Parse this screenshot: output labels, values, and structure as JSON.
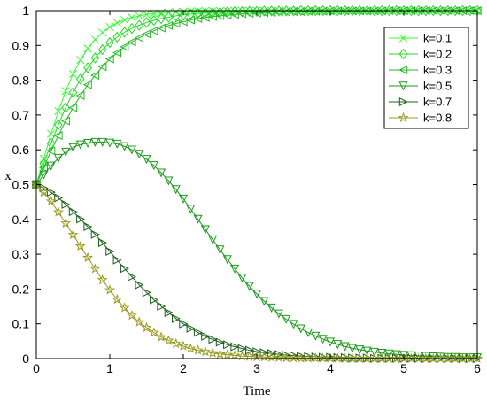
{
  "chart_data": {
    "type": "line",
    "xlabel": "Time",
    "ylabel": "x",
    "xlim": [
      0,
      6
    ],
    "ylim": [
      0,
      1
    ],
    "xticks": [
      0,
      1,
      2,
      3,
      4,
      5,
      6
    ],
    "yticks": [
      0,
      0.1,
      0.2,
      0.3,
      0.4,
      0.5,
      0.6,
      0.7,
      0.8,
      0.9,
      1
    ],
    "grid": false,
    "legend_position": "top-right",
    "sample_step": 0.1,
    "series": [
      {
        "name": "k=0.1",
        "color": "#33ff33",
        "marker": "x",
        "x": [
          0,
          0.1,
          0.2,
          0.3,
          0.4,
          0.5,
          0.6,
          0.7,
          0.8,
          0.9,
          1,
          1.1,
          1.2,
          1.3,
          1.4,
          1.5,
          1.6,
          1.7,
          1.8,
          1.9,
          2,
          2.1,
          2.2,
          2.3,
          2.4,
          2.5,
          2.6,
          2.7,
          2.8,
          2.9,
          3,
          3.1,
          3.2,
          3.3,
          3.4,
          3.5,
          3.6,
          3.7,
          3.8,
          3.9,
          4,
          4.1,
          4.2,
          4.3,
          4.4,
          4.5,
          4.6,
          4.7,
          4.8,
          4.9,
          5,
          5.1,
          5.2,
          5.3,
          5.4,
          5.5,
          5.6,
          5.7,
          5.8,
          5.9,
          6
        ],
        "y": [
          0.5,
          0.574,
          0.646,
          0.711,
          0.769,
          0.818,
          0.858,
          0.891,
          0.917,
          0.937,
          0.953,
          0.965,
          0.973,
          0.98,
          0.985,
          0.989,
          0.992,
          0.994,
          0.995,
          0.996,
          0.997,
          0.998,
          0.998,
          0.999,
          0.999,
          0.999,
          0.999,
          1,
          1,
          1,
          1,
          1,
          1,
          1,
          1,
          1,
          1,
          1,
          1,
          1,
          1,
          1,
          1,
          1,
          1,
          1,
          1,
          1,
          1,
          1,
          1,
          1,
          1,
          1,
          1,
          1,
          1,
          1,
          1,
          1,
          1
        ]
      },
      {
        "name": "k=0.2",
        "color": "#22dd22",
        "marker": "diamond",
        "x": [
          0,
          0.1,
          0.2,
          0.3,
          0.4,
          0.5,
          0.6,
          0.7,
          0.8,
          0.9,
          1,
          1.1,
          1.2,
          1.3,
          1.4,
          1.5,
          1.6,
          1.7,
          1.8,
          1.9,
          2,
          2.1,
          2.2,
          2.3,
          2.4,
          2.5,
          2.6,
          2.7,
          2.8,
          2.9,
          3,
          3.1,
          3.2,
          3.3,
          3.4,
          3.5,
          3.6,
          3.7,
          3.8,
          3.9,
          4,
          4.1,
          4.2,
          4.3,
          4.4,
          4.5,
          4.6,
          4.7,
          4.8,
          4.9,
          5,
          5.1,
          5.2,
          5.3,
          5.4,
          5.5,
          5.6,
          5.7,
          5.8,
          5.9,
          6
        ],
        "y": [
          0.5,
          0.56,
          0.618,
          0.672,
          0.721,
          0.765,
          0.803,
          0.836,
          0.864,
          0.888,
          0.908,
          0.924,
          0.938,
          0.949,
          0.958,
          0.966,
          0.972,
          0.977,
          0.981,
          0.985,
          0.988,
          0.99,
          0.992,
          0.993,
          0.994,
          0.995,
          0.996,
          0.997,
          0.997,
          0.998,
          0.998,
          0.999,
          0.999,
          0.999,
          0.999,
          0.999,
          1,
          1,
          1,
          1,
          1,
          1,
          1,
          1,
          1,
          1,
          1,
          1,
          1,
          1,
          1,
          1,
          1,
          1,
          1,
          1,
          1,
          1,
          1,
          1,
          1
        ]
      },
      {
        "name": "k=0.3",
        "color": "#22bb22",
        "marker": "triangle-left",
        "x": [
          0,
          0.1,
          0.2,
          0.3,
          0.4,
          0.5,
          0.6,
          0.7,
          0.8,
          0.9,
          1,
          1.1,
          1.2,
          1.3,
          1.4,
          1.5,
          1.6,
          1.7,
          1.8,
          1.9,
          2,
          2.1,
          2.2,
          2.3,
          2.4,
          2.5,
          2.6,
          2.7,
          2.8,
          2.9,
          3,
          3.1,
          3.2,
          3.3,
          3.4,
          3.5,
          3.6,
          3.7,
          3.8,
          3.9,
          4,
          4.1,
          4.2,
          4.3,
          4.4,
          4.5,
          4.6,
          4.7,
          4.8,
          4.9,
          5,
          5.1,
          5.2,
          5.3,
          5.4,
          5.5,
          5.6,
          5.7,
          5.8,
          5.9,
          6
        ],
        "y": [
          0.5,
          0.549,
          0.597,
          0.641,
          0.683,
          0.721,
          0.756,
          0.787,
          0.814,
          0.839,
          0.861,
          0.879,
          0.896,
          0.91,
          0.922,
          0.933,
          0.942,
          0.95,
          0.957,
          0.963,
          0.968,
          0.973,
          0.977,
          0.98,
          0.983,
          0.985,
          0.987,
          0.989,
          0.991,
          0.992,
          0.993,
          0.994,
          0.995,
          0.996,
          0.996,
          0.997,
          0.997,
          0.998,
          0.998,
          0.998,
          0.999,
          0.999,
          0.999,
          0.999,
          0.999,
          0.999,
          0.999,
          0.999,
          1,
          1,
          1,
          1,
          1,
          1,
          1,
          1,
          1,
          1,
          1,
          1,
          1
        ]
      },
      {
        "name": "k=0.5",
        "color": "#1a991a",
        "marker": "triangle-down",
        "x": [
          0,
          0.1,
          0.2,
          0.3,
          0.4,
          0.5,
          0.6,
          0.7,
          0.8,
          0.9,
          1,
          1.1,
          1.2,
          1.3,
          1.4,
          1.5,
          1.6,
          1.7,
          1.8,
          1.9,
          2,
          2.1,
          2.2,
          2.3,
          2.4,
          2.5,
          2.6,
          2.7,
          2.8,
          2.9,
          3,
          3.1,
          3.2,
          3.3,
          3.4,
          3.5,
          3.6,
          3.7,
          3.8,
          3.9,
          4,
          4.1,
          4.2,
          4.3,
          4.4,
          4.5,
          4.6,
          4.7,
          4.8,
          4.9,
          5,
          5.1,
          5.2,
          5.3,
          5.4,
          5.5,
          5.6,
          5.7,
          5.8,
          5.9,
          6
        ],
        "y": [
          0.5,
          0.528,
          0.554,
          0.576,
          0.594,
          0.607,
          0.615,
          0.619,
          0.622,
          0.622,
          0.62,
          0.617,
          0.61,
          0.6,
          0.588,
          0.573,
          0.555,
          0.534,
          0.511,
          0.486,
          0.459,
          0.43,
          0.401,
          0.371,
          0.342,
          0.313,
          0.285,
          0.258,
          0.232,
          0.208,
          0.186,
          0.165,
          0.146,
          0.129,
          0.113,
          0.099,
          0.086,
          0.075,
          0.065,
          0.056,
          0.048,
          0.041,
          0.035,
          0.03,
          0.026,
          0.022,
          0.019,
          0.016,
          0.014,
          0.012,
          0.01,
          0.009,
          0.008,
          0.007,
          0.006,
          0.005,
          0.004,
          0.004,
          0.003,
          0.003,
          0.003
        ]
      },
      {
        "name": "k=0.7",
        "color": "#1a5f1a",
        "marker": "triangle-right",
        "x": [
          0,
          0.1,
          0.2,
          0.3,
          0.4,
          0.5,
          0.6,
          0.7,
          0.8,
          0.9,
          1,
          1.1,
          1.2,
          1.3,
          1.4,
          1.5,
          1.6,
          1.7,
          1.8,
          1.9,
          2,
          2.1,
          2.2,
          2.3,
          2.4,
          2.5,
          2.6,
          2.7,
          2.8,
          2.9,
          3,
          3.1,
          3.2,
          3.3,
          3.4,
          3.5,
          3.6,
          3.7,
          3.8,
          3.9,
          4,
          4.1,
          4.2,
          4.3,
          4.4,
          4.5,
          4.6,
          4.7,
          4.8,
          4.9,
          5,
          5.1,
          5.2,
          5.3,
          5.4,
          5.5,
          5.6,
          5.7,
          5.8,
          5.9,
          6
        ],
        "y": [
          0.5,
          0.49,
          0.478,
          0.462,
          0.443,
          0.422,
          0.401,
          0.379,
          0.357,
          0.333,
          0.308,
          0.283,
          0.259,
          0.235,
          0.212,
          0.19,
          0.169,
          0.15,
          0.132,
          0.115,
          0.1,
          0.087,
          0.075,
          0.064,
          0.055,
          0.047,
          0.04,
          0.034,
          0.029,
          0.024,
          0.02,
          0.017,
          0.015,
          0.012,
          0.01,
          0.009,
          0.007,
          0.006,
          0.005,
          0.004,
          0.004,
          0.003,
          0.003,
          0.002,
          0.002,
          0.002,
          0.001,
          0.001,
          0.001,
          0.001,
          0.001,
          0.001,
          0.001,
          0,
          0,
          0,
          0,
          0,
          0,
          0,
          0
        ]
      },
      {
        "name": "k=0.8",
        "color": "#9a9a20",
        "marker": "star",
        "x": [
          0,
          0.1,
          0.2,
          0.3,
          0.4,
          0.5,
          0.6,
          0.7,
          0.8,
          0.9,
          1,
          1.1,
          1.2,
          1.3,
          1.4,
          1.5,
          1.6,
          1.7,
          1.8,
          1.9,
          2,
          2.1,
          2.2,
          2.3,
          2.4,
          2.5,
          2.6,
          2.7,
          2.8,
          2.9,
          3,
          3.1,
          3.2,
          3.3,
          3.4,
          3.5,
          3.6,
          3.7,
          3.8,
          3.9,
          4,
          4.1,
          4.2,
          4.3,
          4.4,
          4.5,
          4.6,
          4.7,
          4.8,
          4.9,
          5,
          5.1,
          5.2,
          5.3,
          5.4,
          5.5,
          5.6,
          5.7,
          5.8,
          5.9,
          6
        ],
        "y": [
          0.5,
          0.478,
          0.452,
          0.421,
          0.389,
          0.356,
          0.323,
          0.29,
          0.258,
          0.226,
          0.197,
          0.17,
          0.146,
          0.124,
          0.105,
          0.089,
          0.075,
          0.062,
          0.052,
          0.043,
          0.036,
          0.029,
          0.024,
          0.02,
          0.016,
          0.013,
          0.011,
          0.009,
          0.007,
          0.006,
          0.005,
          0.004,
          0.003,
          0.003,
          0.002,
          0.002,
          0.001,
          0.001,
          0.001,
          0.001,
          0.001,
          0.001,
          0,
          0,
          0,
          0,
          0,
          0,
          0,
          0,
          0,
          0,
          0,
          0,
          0,
          0,
          0,
          0,
          0,
          0,
          0
        ]
      }
    ]
  }
}
